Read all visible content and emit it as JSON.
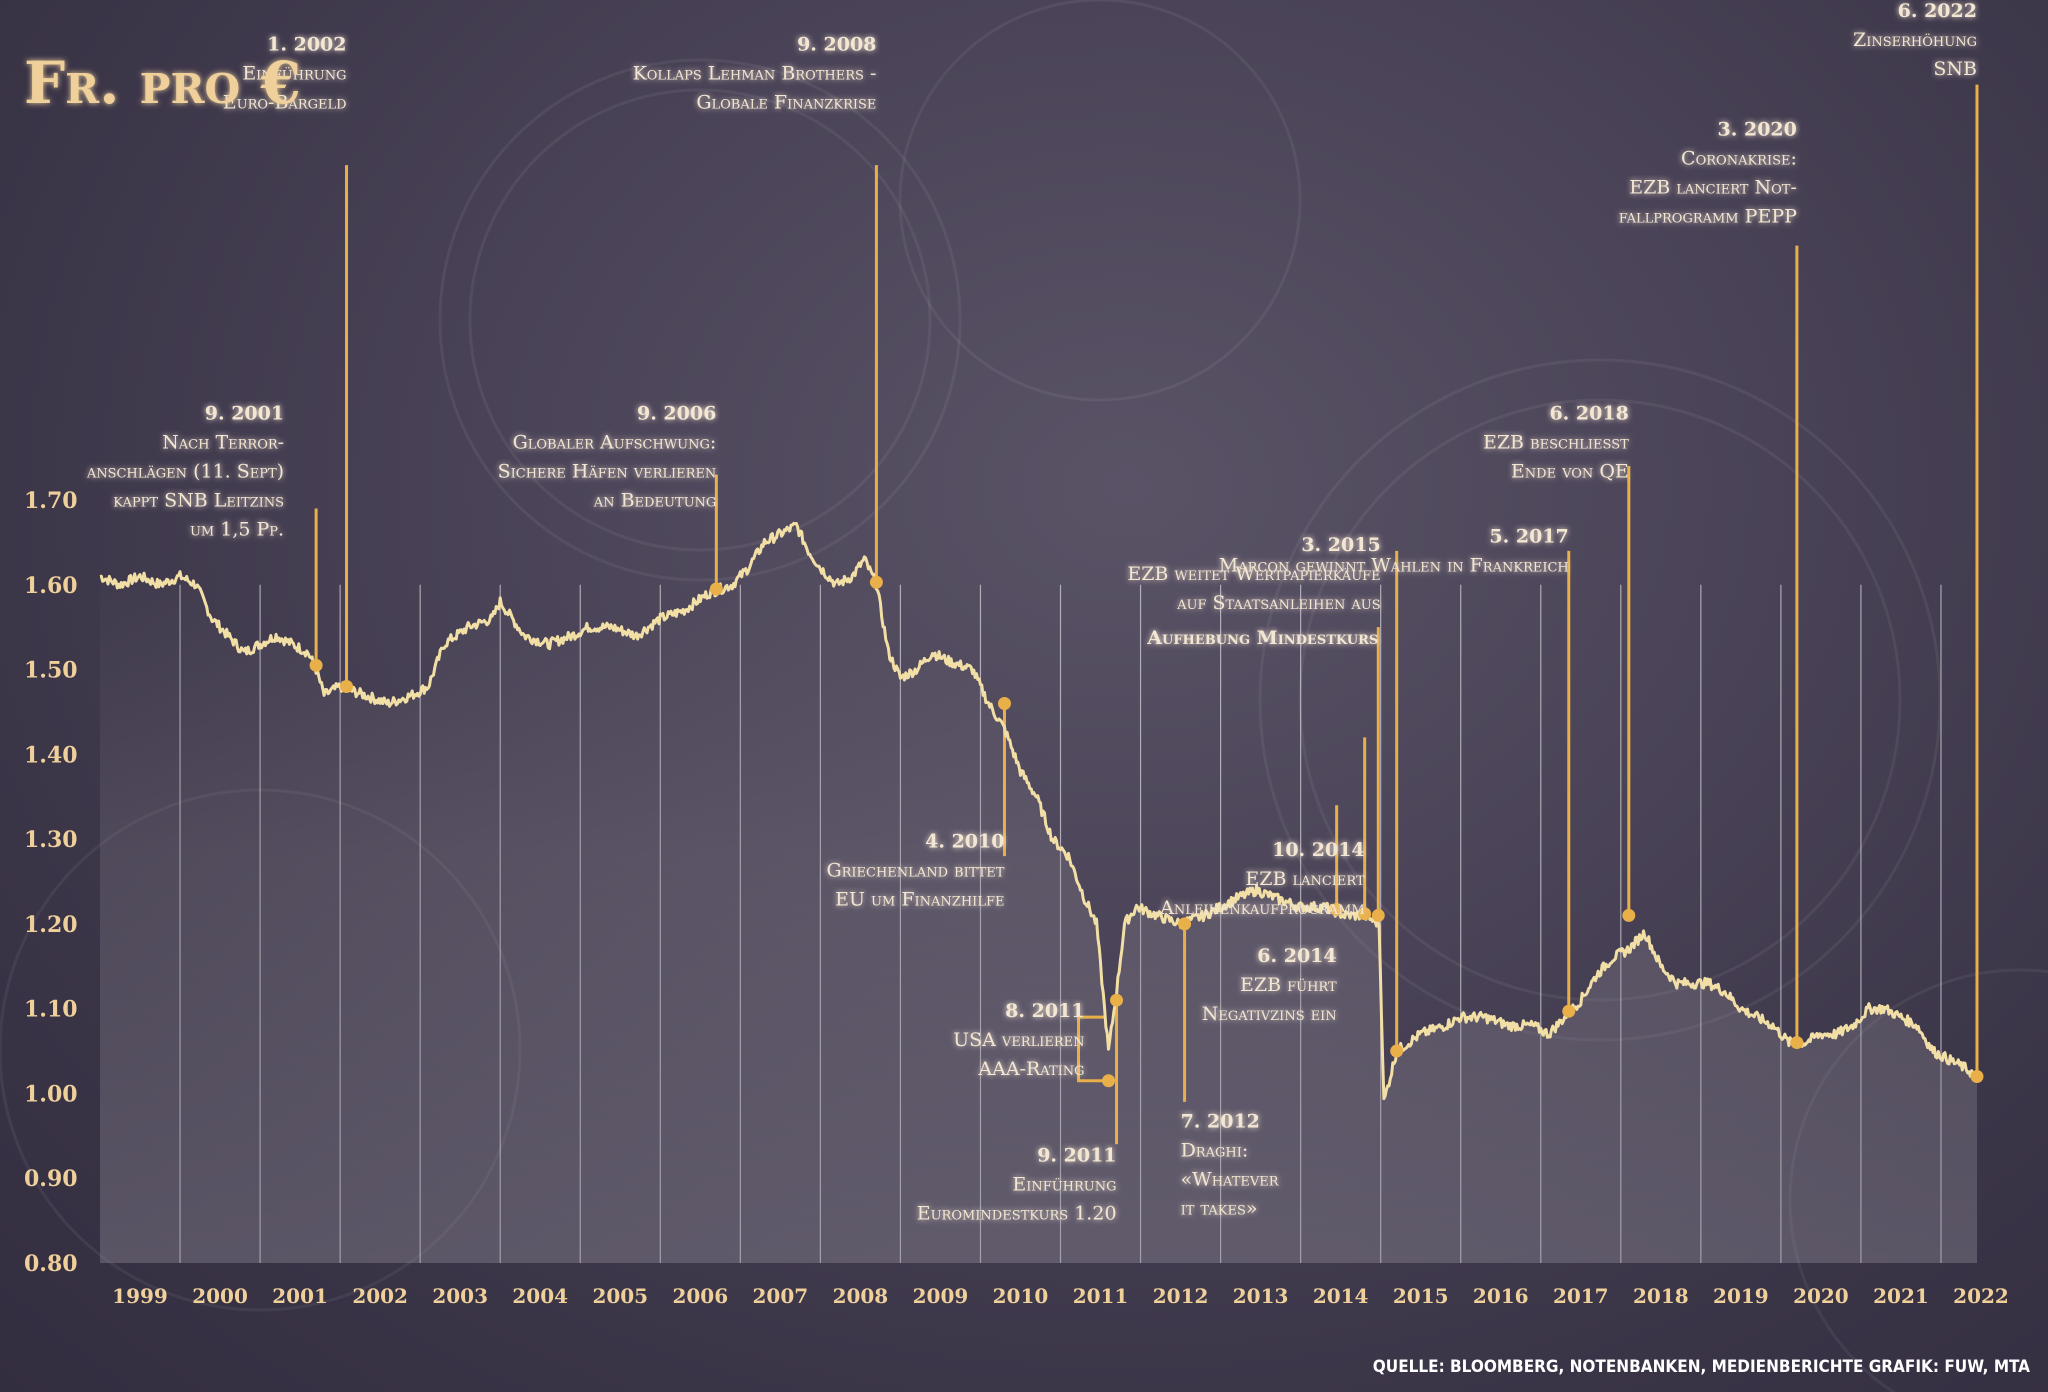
{
  "chart_data": {
    "type": "line",
    "title": "Fr. pro €",
    "ylim": [
      0.8,
      1.7
    ],
    "y_ticks": [
      "1.70",
      "1.60",
      "1.50",
      "1.40",
      "1.30",
      "1.20",
      "1.10",
      "1.00",
      "0.90",
      "0.80"
    ],
    "x_ticks": [
      "1999",
      "2000",
      "2001",
      "2002",
      "2003",
      "2004",
      "2005",
      "2006",
      "2007",
      "2008",
      "2009",
      "2010",
      "2011",
      "2012",
      "2013",
      "2014",
      "2015",
      "2016",
      "2017",
      "2018",
      "2019",
      "2020",
      "2021",
      "2022"
    ],
    "grid": "vertical",
    "series": [
      {
        "values_key": "EUR/CHF",
        "points": [
          [
            1999.0,
            1.61
          ],
          [
            1999.25,
            1.6
          ],
          [
            1999.5,
            1.61
          ],
          [
            1999.75,
            1.6
          ],
          [
            2000.0,
            1.61
          ],
          [
            2000.2,
            1.6
          ],
          [
            2000.4,
            1.56
          ],
          [
            2000.6,
            1.54
          ],
          [
            2000.8,
            1.52
          ],
          [
            2001.0,
            1.53
          ],
          [
            2001.2,
            1.54
          ],
          [
            2001.4,
            1.53
          ],
          [
            2001.6,
            1.52
          ],
          [
            2001.7,
            1.5
          ],
          [
            2001.8,
            1.47
          ],
          [
            2002.0,
            1.48
          ],
          [
            2002.3,
            1.47
          ],
          [
            2002.6,
            1.46
          ],
          [
            2002.9,
            1.47
          ],
          [
            2003.1,
            1.48
          ],
          [
            2003.3,
            1.53
          ],
          [
            2003.6,
            1.55
          ],
          [
            2003.9,
            1.56
          ],
          [
            2004.0,
            1.58
          ],
          [
            2004.3,
            1.54
          ],
          [
            2004.6,
            1.53
          ],
          [
            2004.9,
            1.54
          ],
          [
            2005.1,
            1.55
          ],
          [
            2005.4,
            1.55
          ],
          [
            2005.7,
            1.54
          ],
          [
            2006.0,
            1.56
          ],
          [
            2006.3,
            1.57
          ],
          [
            2006.6,
            1.59
          ],
          [
            2006.9,
            1.6
          ],
          [
            2007.1,
            1.62
          ],
          [
            2007.3,
            1.65
          ],
          [
            2007.5,
            1.66
          ],
          [
            2007.7,
            1.67
          ],
          [
            2007.85,
            1.64
          ],
          [
            2008.0,
            1.62
          ],
          [
            2008.2,
            1.6
          ],
          [
            2008.4,
            1.61
          ],
          [
            2008.55,
            1.63
          ],
          [
            2008.7,
            1.6
          ],
          [
            2008.85,
            1.52
          ],
          [
            2009.0,
            1.49
          ],
          [
            2009.2,
            1.5
          ],
          [
            2009.4,
            1.52
          ],
          [
            2009.6,
            1.51
          ],
          [
            2009.9,
            1.5
          ],
          [
            2010.1,
            1.46
          ],
          [
            2010.3,
            1.43
          ],
          [
            2010.5,
            1.38
          ],
          [
            2010.7,
            1.35
          ],
          [
            2010.9,
            1.3
          ],
          [
            2011.1,
            1.28
          ],
          [
            2011.3,
            1.23
          ],
          [
            2011.45,
            1.2
          ],
          [
            2011.6,
            1.05
          ],
          [
            2011.7,
            1.12
          ],
          [
            2011.8,
            1.2
          ],
          [
            2011.95,
            1.22
          ],
          [
            2012.2,
            1.21
          ],
          [
            2012.5,
            1.2
          ],
          [
            2012.8,
            1.21
          ],
          [
            2013.0,
            1.22
          ],
          [
            2013.2,
            1.23
          ],
          [
            2013.45,
            1.24
          ],
          [
            2013.7,
            1.23
          ],
          [
            2014.0,
            1.22
          ],
          [
            2014.3,
            1.22
          ],
          [
            2014.55,
            1.21
          ],
          [
            2014.8,
            1.21
          ],
          [
            2014.98,
            1.2
          ],
          [
            2015.04,
            0.99
          ],
          [
            2015.2,
            1.05
          ],
          [
            2015.5,
            1.07
          ],
          [
            2015.8,
            1.08
          ],
          [
            2016.0,
            1.09
          ],
          [
            2016.3,
            1.09
          ],
          [
            2016.6,
            1.08
          ],
          [
            2016.9,
            1.08
          ],
          [
            2017.1,
            1.07
          ],
          [
            2017.3,
            1.09
          ],
          [
            2017.5,
            1.11
          ],
          [
            2017.7,
            1.14
          ],
          [
            2017.9,
            1.16
          ],
          [
            2018.1,
            1.17
          ],
          [
            2018.3,
            1.19
          ],
          [
            2018.5,
            1.15
          ],
          [
            2018.7,
            1.13
          ],
          [
            2018.9,
            1.13
          ],
          [
            2019.1,
            1.13
          ],
          [
            2019.3,
            1.12
          ],
          [
            2019.5,
            1.1
          ],
          [
            2019.7,
            1.09
          ],
          [
            2019.9,
            1.08
          ],
          [
            2020.1,
            1.06
          ],
          [
            2020.3,
            1.06
          ],
          [
            2020.5,
            1.07
          ],
          [
            2020.7,
            1.07
          ],
          [
            2020.9,
            1.08
          ],
          [
            2021.1,
            1.1
          ],
          [
            2021.3,
            1.1
          ],
          [
            2021.5,
            1.09
          ],
          [
            2021.7,
            1.08
          ],
          [
            2021.9,
            1.05
          ],
          [
            2022.1,
            1.04
          ],
          [
            2022.3,
            1.03
          ],
          [
            2022.45,
            1.02
          ]
        ]
      }
    ],
    "annotations": [
      {
        "x": 2001.7,
        "y": 1.505,
        "anchor": "end",
        "text_x": 2001.3,
        "text_y": 1.795,
        "line_top": 1.69,
        "lines": [
          "9. 2001",
          "Nach Terror-",
          "anschlägen (11. Sept)",
          "kappt SNB Leitzins",
          "um 1,5 Pp."
        ]
      },
      {
        "x": 2002.08,
        "y": 1.48,
        "anchor": "end",
        "text_x": 2002.08,
        "text_y": 2.23,
        "line_top": 2.095,
        "lines": [
          "1. 2002",
          "Einführung",
          "Euro-Bargeld"
        ]
      },
      {
        "x": 2006.7,
        "y": 1.595,
        "anchor": "end",
        "text_x": 2006.7,
        "text_y": 1.795,
        "line_top": 1.73,
        "lines": [
          "9. 2006",
          "Globaler Aufschwung:",
          "Sichere Häfen verlieren",
          "an Bedeutung"
        ]
      },
      {
        "x": 2008.7,
        "y": 1.603,
        "anchor": "end",
        "text_x": 2008.7,
        "text_y": 2.23,
        "line_top": 2.095,
        "lines": [
          "9. 2008",
          "Kollaps Lehman Brothers -",
          "Globale Finanzkrise"
        ]
      },
      {
        "x": 2010.3,
        "y": 1.46,
        "anchor": "end",
        "text_x": 2010.3,
        "text_y": 1.29,
        "line_top": 1.28,
        "lines": [
          "4. 2010",
          "Griechenland bittet",
          "EU um Finanzhilfe"
        ]
      },
      {
        "x": 2011.6,
        "y": 1.015,
        "anchor": "end",
        "text_x": 2011.3,
        "text_y": 1.09,
        "bracket": true,
        "lines": [
          "8. 2011",
          "USA verlieren",
          "AAA-Rating"
        ]
      },
      {
        "x": 2011.7,
        "y": 1.11,
        "anchor": "end",
        "text_x": 2011.7,
        "text_y": 0.92,
        "line_top": 0.94,
        "lines": [
          "9. 2011",
          "Einführung",
          "Euromindestkurs 1.20"
        ]
      },
      {
        "x": 2012.55,
        "y": 1.2,
        "anchor": "start",
        "text_x": 2012.5,
        "text_y": 0.96,
        "line_top": 0.99,
        "lines": [
          "7. 2012",
          "Draghi:",
          "«Whatever",
          "it takes»"
        ]
      },
      {
        "x": 2014.45,
        "y": 1.217,
        "anchor": "end",
        "text_x": 2014.45,
        "text_y": 1.155,
        "line_top": 1.34,
        "lines": [
          "6. 2014",
          "EZB führt",
          "Negativzins ein"
        ]
      },
      {
        "x": 2014.8,
        "y": 1.212,
        "anchor": "end",
        "text_x": 2014.8,
        "text_y": 1.28,
        "line_top": 1.42,
        "lines": [
          "10. 2014",
          "EZB lanciert",
          "Anleihenkaufprogramm"
        ]
      },
      {
        "x": 2014.97,
        "y": 1.21,
        "anchor": "end",
        "text_x": 2014.97,
        "text_y": 1.53,
        "line_top": 1.55,
        "lines": [
          "Aufhebung Mindestkurs"
        ]
      },
      {
        "x": 2015.2,
        "y": 1.05,
        "anchor": "end",
        "text_x": 2015.0,
        "text_y": 1.64,
        "line_top": 1.64,
        "lines": [
          "3. 2015",
          "EZB weitet Wertpapierkäufe",
          "auf Staatsanleihen aus"
        ]
      },
      {
        "x": 2017.35,
        "y": 1.097,
        "anchor": "end",
        "text_x": 2017.35,
        "text_y": 1.65,
        "line_top": 1.64,
        "lines": [
          "5. 2017",
          "Marcon gewinnt Wahlen in Frankreich"
        ]
      },
      {
        "x": 2018.1,
        "y": 1.21,
        "anchor": "end",
        "text_x": 2018.1,
        "text_y": 1.795,
        "line_top": 1.74,
        "lines": [
          "6. 2018",
          "EZB beschliesst",
          "Ende von QE"
        ]
      },
      {
        "x": 2020.2,
        "y": 1.06,
        "anchor": "end",
        "text_x": 2020.2,
        "text_y": 2.13,
        "line_top": 2.0,
        "lines": [
          "3. 2020",
          "Coronakrise:",
          "EZB lanciert Not-",
          "fallprogramm PEPP"
        ]
      },
      {
        "x": 2022.45,
        "y": 1.02,
        "anchor": "end",
        "text_x": 2022.45,
        "text_y": 2.27,
        "line_top": 2.19,
        "lines": [
          "6. 2022",
          "Zinserhöhung",
          "SNB"
        ]
      }
    ]
  },
  "source_text": "QUELLE:  BLOOMBERG, NOTENBANKEN, MEDIENBERICHTE    GRAFIK: FUW, MTA"
}
